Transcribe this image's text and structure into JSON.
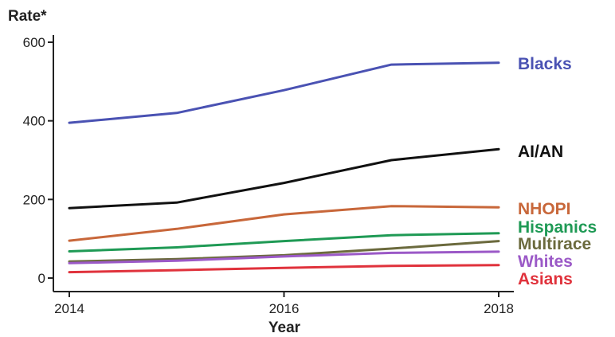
{
  "chart_data": {
    "type": "line",
    "ylabel": "Rate*",
    "xlabel": "Year",
    "xlim": [
      2014,
      2018
    ],
    "ylim": [
      0,
      600
    ],
    "x_ticks": [
      "2014",
      "2016",
      "2018"
    ],
    "y_ticks": [
      "0",
      "200",
      "400",
      "600"
    ],
    "grid": false,
    "legend": "direct labels at right end of lines",
    "x": [
      2014,
      2015,
      2016,
      2017,
      2018
    ],
    "series": [
      {
        "name": "Blacks",
        "color": "#4a52b3",
        "values": [
          395,
          420,
          478,
          543,
          548
        ]
      },
      {
        "name": "AI/AN",
        "color": "#111111",
        "values": [
          178,
          192,
          242,
          300,
          328
        ]
      },
      {
        "name": "NHOPI",
        "color": "#c8673a",
        "values": [
          95,
          125,
          162,
          183,
          180
        ]
      },
      {
        "name": "Hispanics",
        "color": "#1f9a55",
        "values": [
          68,
          78,
          94,
          109,
          114
        ]
      },
      {
        "name": "Multirace",
        "color": "#6b6a3d",
        "values": [
          42,
          48,
          58,
          75,
          94
        ]
      },
      {
        "name": "Whites",
        "color": "#9b59c7",
        "values": [
          38,
          44,
          55,
          64,
          67
        ]
      },
      {
        "name": "Asians",
        "color": "#e0323c",
        "values": [
          15,
          20,
          26,
          31,
          33
        ]
      }
    ]
  }
}
